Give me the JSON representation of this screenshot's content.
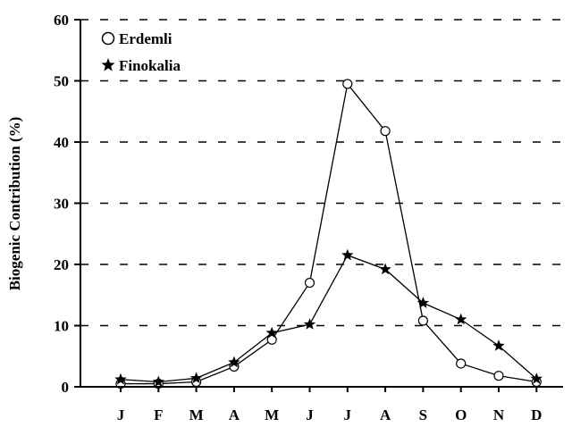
{
  "chart_data": {
    "type": "line",
    "title": "",
    "xlabel": "",
    "ylabel": "Biogenic Contribution (%)",
    "categories": [
      "J",
      "F",
      "M",
      "A",
      "M",
      "J",
      "J",
      "A",
      "S",
      "O",
      "N",
      "D"
    ],
    "ylim": [
      0,
      60
    ],
    "yticks": [
      "0",
      "10",
      "20",
      "30",
      "40",
      "50",
      "60"
    ],
    "grid": "dashed horizontal",
    "legend_position": "top-left",
    "series": [
      {
        "name": "Erdemli",
        "marker": "open-circle",
        "values": [
          0.5,
          0.5,
          0.8,
          3.3,
          7.7,
          17.0,
          49.5,
          41.8,
          10.8,
          3.8,
          1.8,
          0.8
        ]
      },
      {
        "name": "Finokalia",
        "marker": "filled-star",
        "values": [
          1.2,
          0.8,
          1.4,
          4.0,
          8.8,
          10.2,
          21.5,
          19.2,
          13.7,
          11.0,
          6.7,
          1.3
        ]
      }
    ],
    "colors": {
      "line": "#000000",
      "background": "#ffffff"
    }
  }
}
